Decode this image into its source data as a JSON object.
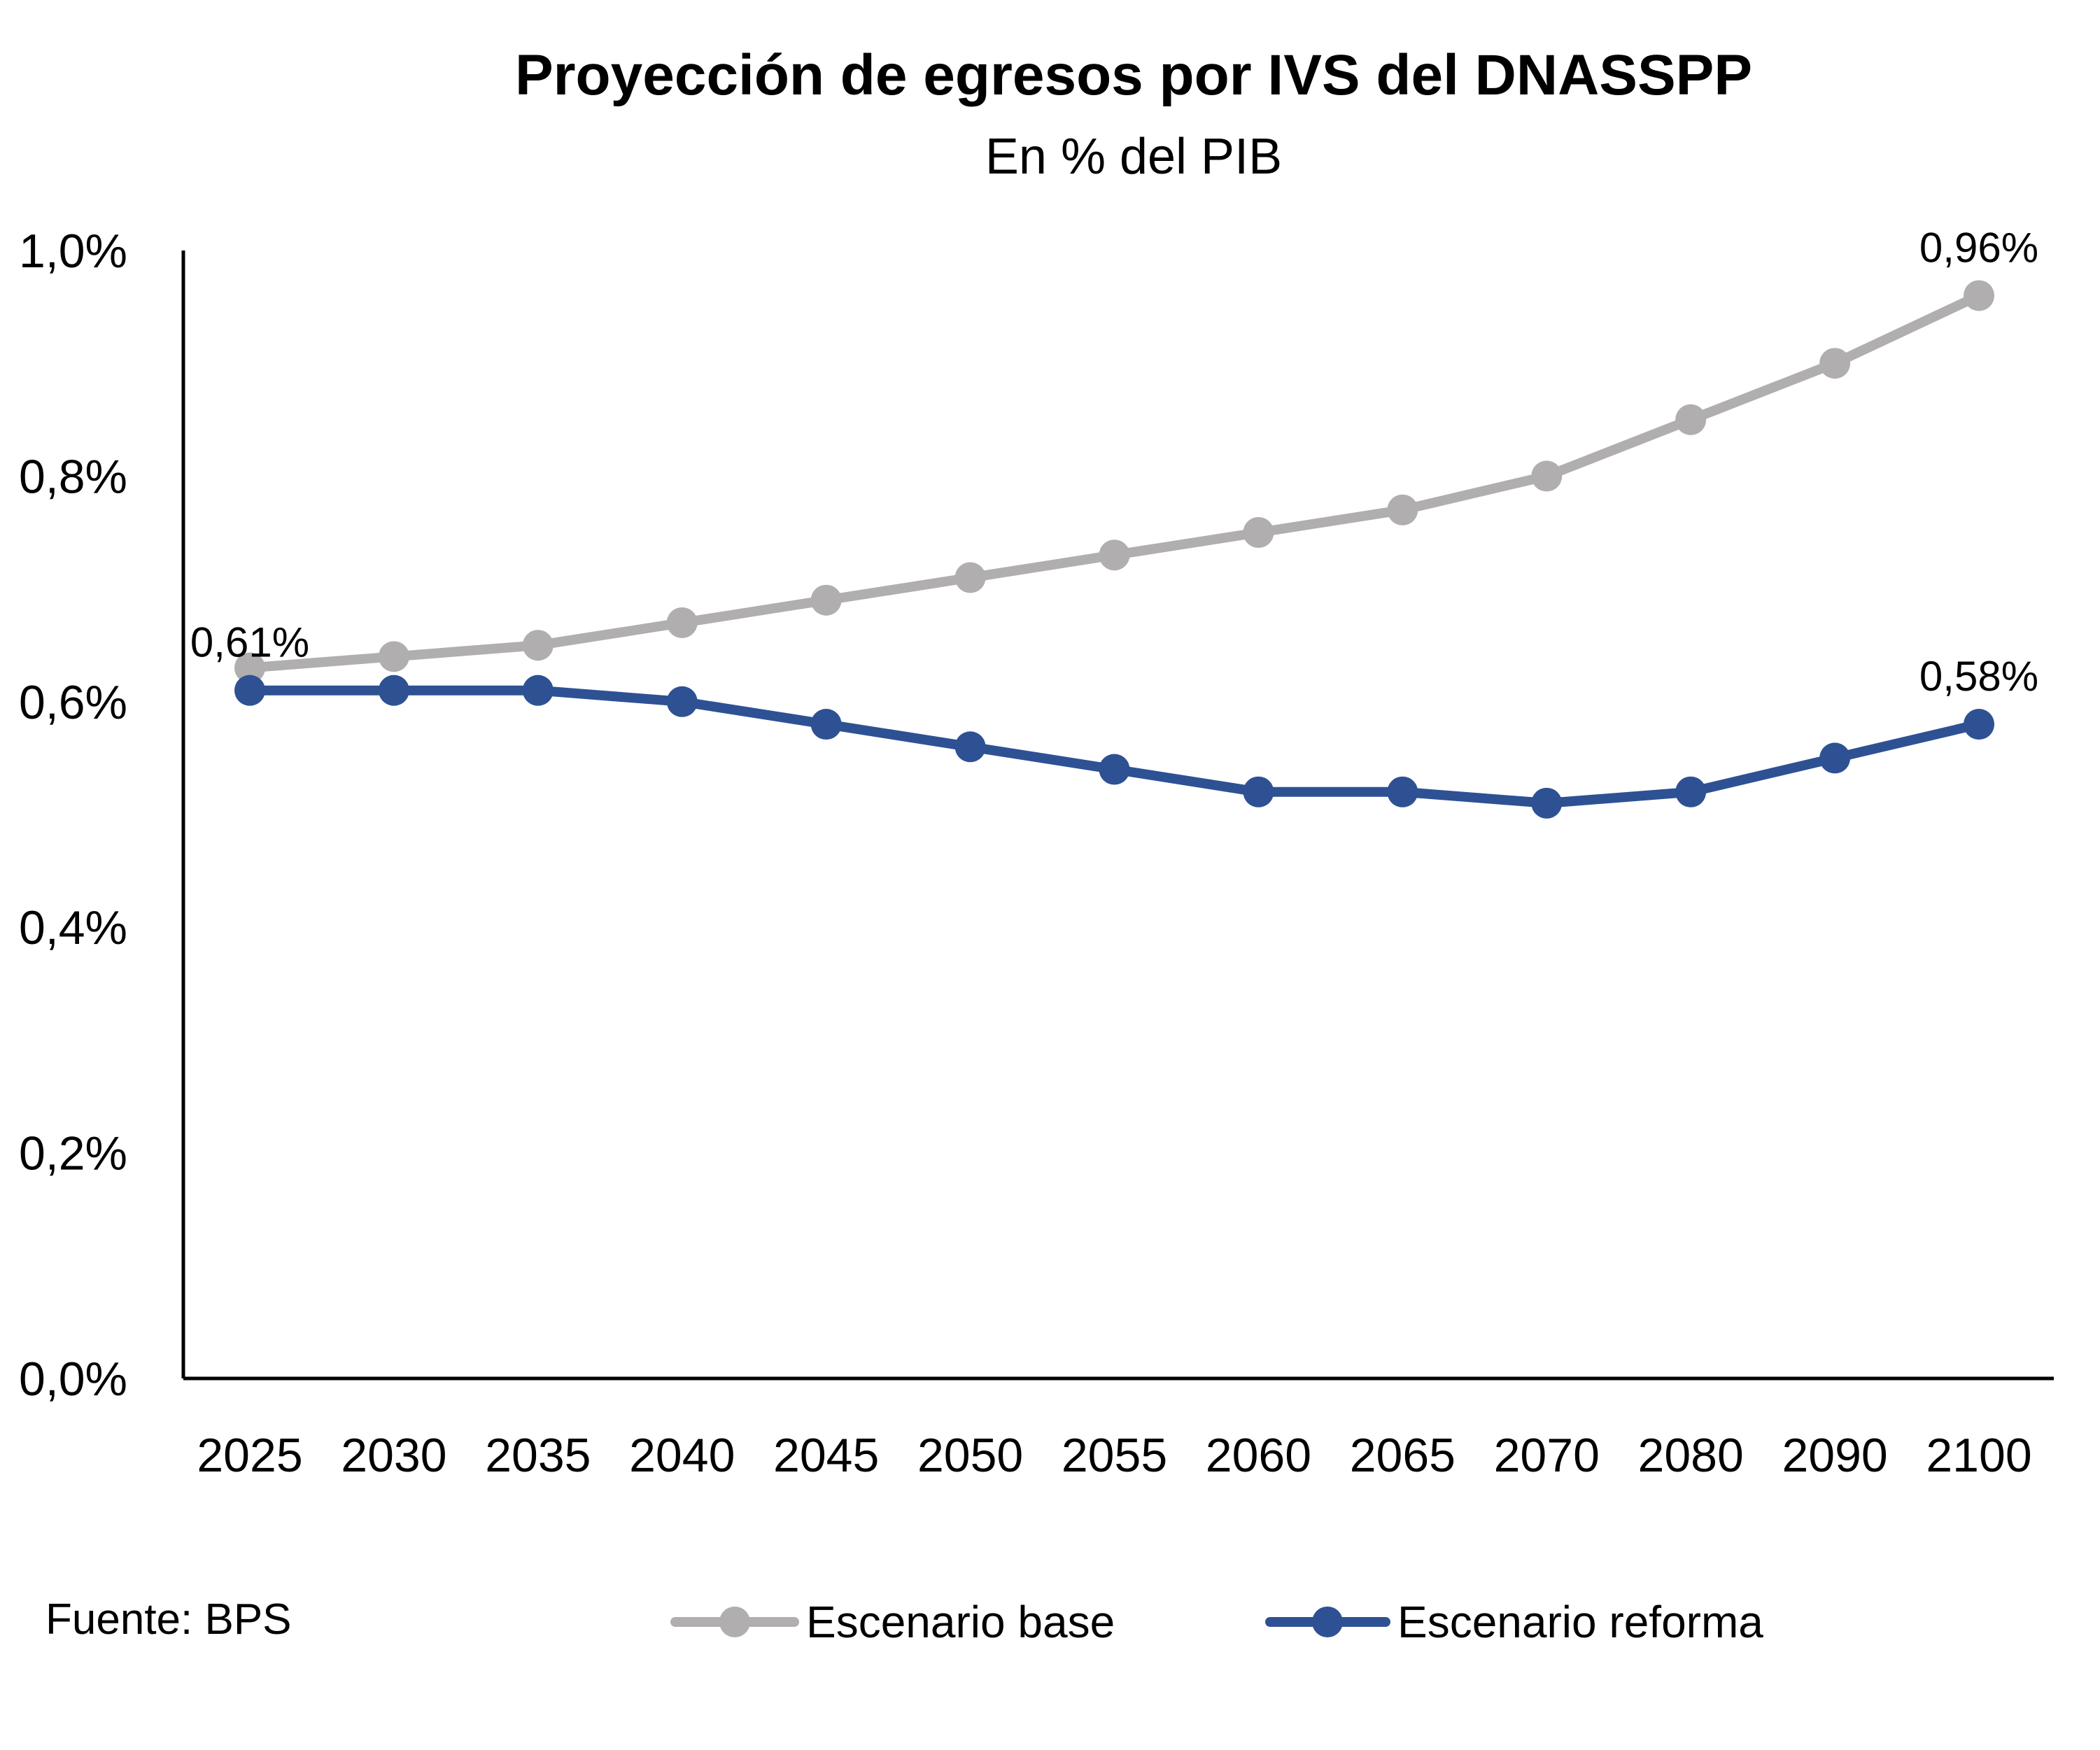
{
  "chart_data": {
    "type": "line",
    "title": "Proyección de egresos por IVS del DNASSPP",
    "subtitle": "En % del PIB",
    "categories": [
      "2025",
      "2030",
      "2035",
      "2040",
      "2045",
      "2050",
      "2055",
      "2060",
      "2065",
      "2070",
      "2080",
      "2090",
      "2100"
    ],
    "series": [
      {
        "name": "Escenario base",
        "color": "#b0aeae",
        "values": [
          0.63,
          0.64,
          0.65,
          0.67,
          0.69,
          0.71,
          0.73,
          0.75,
          0.77,
          0.8,
          0.85,
          0.9,
          0.96
        ]
      },
      {
        "name": "Escenario reforma",
        "color": "#2e5194",
        "values": [
          0.61,
          0.61,
          0.61,
          0.6,
          0.58,
          0.56,
          0.54,
          0.52,
          0.52,
          0.51,
          0.52,
          0.55,
          0.58
        ]
      }
    ],
    "yticks": [
      "0,0%",
      "0,2%",
      "0,4%",
      "0,6%",
      "0,8%",
      "1,0%"
    ],
    "ylim": [
      0,
      1.0
    ],
    "ylabel": "",
    "xlabel": "",
    "data_labels": [
      {
        "series": 0,
        "index": 12,
        "text": "0,96%",
        "position": "above"
      },
      {
        "series": 1,
        "index": 0,
        "text": "0,61%",
        "position": "above"
      },
      {
        "series": 1,
        "index": 12,
        "text": "0,58%",
        "position": "above"
      }
    ],
    "legend_position": "bottom",
    "grid": false
  },
  "source_note": "Fuente: BPS"
}
